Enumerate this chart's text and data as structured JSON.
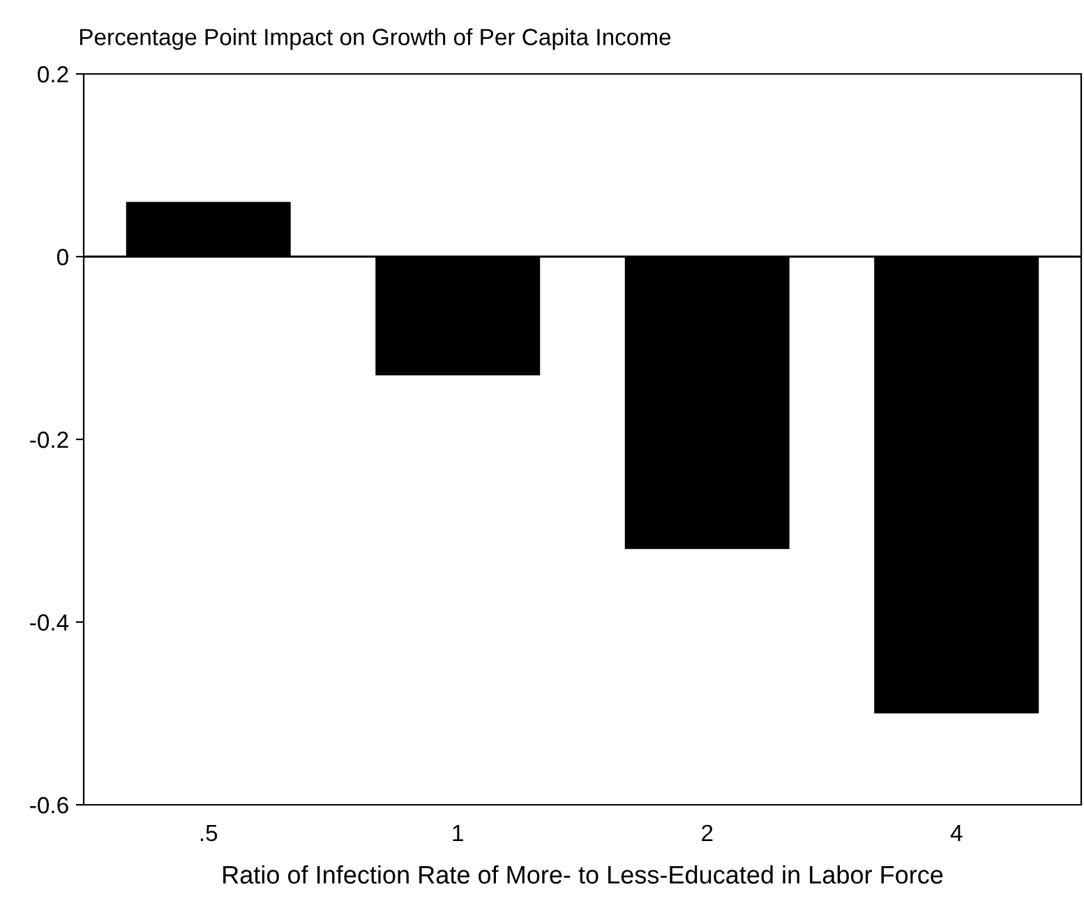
{
  "chart_data": {
    "type": "bar",
    "title": "Percentage Point Impact on Growth of Per Capita Income",
    "xlabel": "Ratio of Infection Rate of More- to Less-Educated in Labor Force",
    "categories": [
      ".5",
      "1",
      "2",
      "4"
    ],
    "values": [
      0.06,
      -0.13,
      -0.32,
      -0.5
    ],
    "color": "#000000",
    "ylim": [
      -0.6,
      0.2
    ],
    "yticks": [
      {
        "value": -0.6,
        "label": "-0.6"
      },
      {
        "value": -0.4,
        "label": "-0.4"
      },
      {
        "value": -0.2,
        "label": "-0.2"
      },
      0,
      0.2
    ],
    "ref_lines": [
      {
        "axis": "y",
        "value": 0,
        "label": null,
        "color": "#000000"
      }
    ],
    "grid": false,
    "legend": false
  }
}
